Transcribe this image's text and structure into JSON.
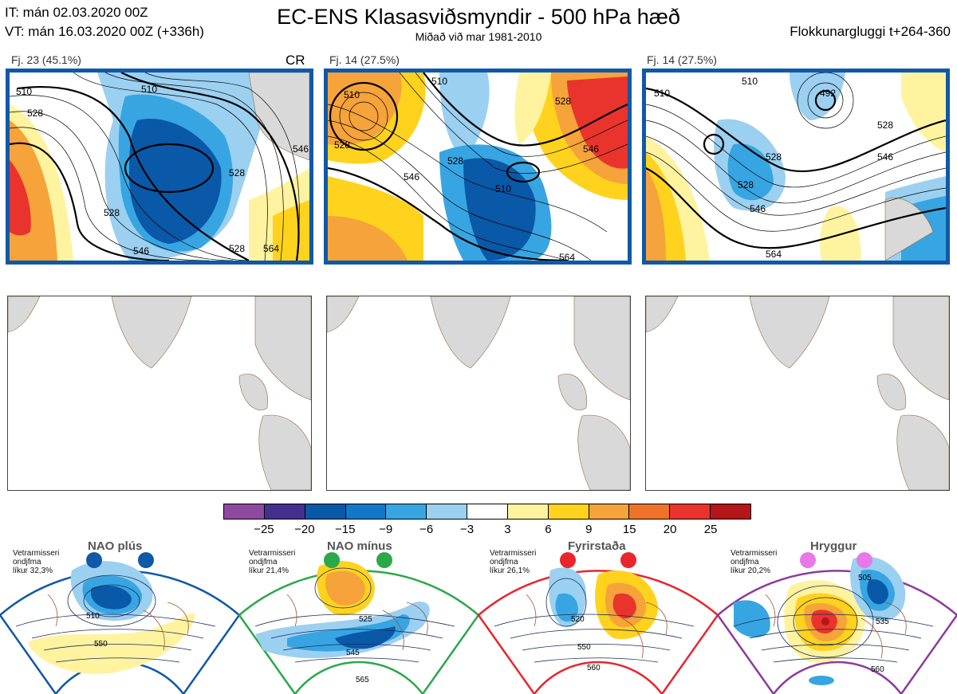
{
  "header": {
    "it_line": "IT: mán 02.03.2020 00Z",
    "vt_line": "VT: mán 16.03.2020 00Z  (+336h)",
    "title": "EC-ENS Klasasviðsmyndir - 500 hPa hæð",
    "subtitle": "Miðað við mar 1981-2010",
    "window": "Flokkunargluggi t+264-360"
  },
  "clusters": [
    {
      "label": "Fj. 23 (45.1%)",
      "tag": "CR",
      "contours": [
        "510",
        "528",
        "546",
        "528",
        "510",
        "528",
        "546",
        "564",
        "528"
      ]
    },
    {
      "label": "Fj. 14 (27.5%)",
      "contours": [
        "510",
        "528",
        "546",
        "528",
        "510",
        "528",
        "546",
        "564",
        "510"
      ]
    },
    {
      "label": "Fj. 14 (27.5%)",
      "contours": [
        "492",
        "510",
        "528",
        "546",
        "528",
        "546",
        "564",
        "510",
        "528"
      ]
    }
  ],
  "colorbar": {
    "colors": [
      "#8e4a9e",
      "#42318f",
      "#0a58a8",
      "#1377c8",
      "#37a5e2",
      "#9bd0f1",
      "#ffffff",
      "#fff3a0",
      "#ffd21e",
      "#f5a33a",
      "#ee7228",
      "#e8342c",
      "#b4161a"
    ],
    "ticks": [
      "−25",
      "−20",
      "−15",
      "−9",
      "−6",
      "−3",
      "3",
      "6",
      "9",
      "15",
      "20",
      "25"
    ]
  },
  "regimes": [
    {
      "name": "NAO plús",
      "note": [
        "Vetrarmisseri",
        "ondjfma",
        "líkur 32,3%"
      ],
      "color": "#1058a8",
      "contours": [
        "510",
        "550"
      ]
    },
    {
      "name": "NAO mínus",
      "note": [
        "Vetrarmisseri",
        "ondjfma",
        "líkur 21,4%"
      ],
      "color": "#2aa84a",
      "contours": [
        "525",
        "545",
        "565"
      ]
    },
    {
      "name": "Fyrirstaða",
      "note": [
        "Vetrarmisseri",
        "ondjfma",
        "líkur 26,1%"
      ],
      "color": "#e8262c",
      "contours": [
        "520",
        "550",
        "560"
      ]
    },
    {
      "name": "Hryggur",
      "note": [
        "Vetrarmisseri",
        "ondjfma",
        "líkur 20,2%"
      ],
      "color": "#e878e8",
      "contours": [
        "505",
        "535",
        "560"
      ]
    }
  ]
}
